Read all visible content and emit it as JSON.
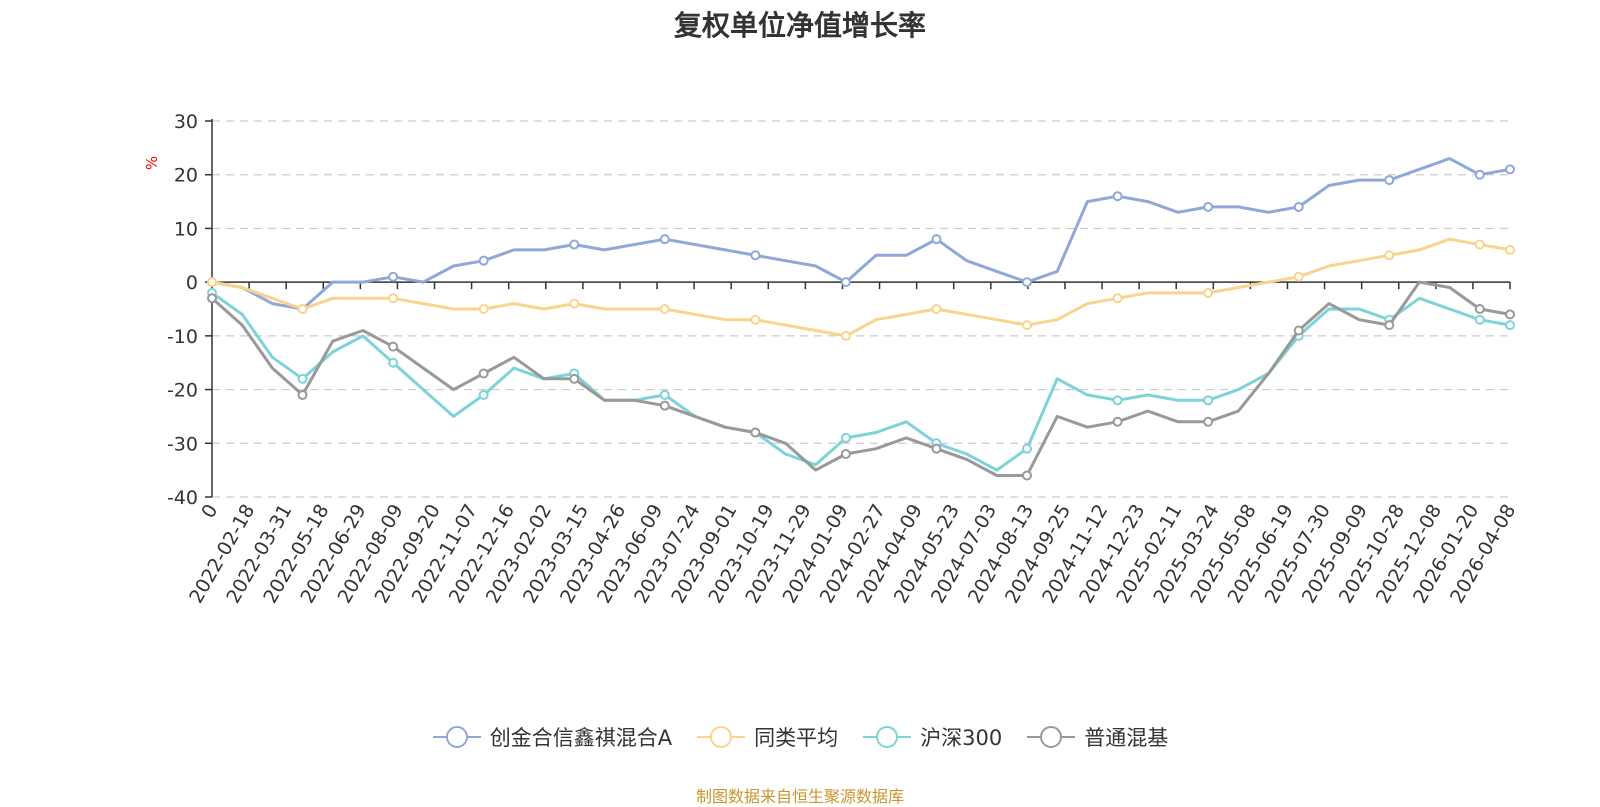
{
  "title": "复权单位净值增长率",
  "source": "制图数据来自恒生聚源数据库",
  "chart_data": {
    "type": "line",
    "title": "复权单位净值增长率",
    "ylabel": "%",
    "xlabel": "",
    "ylim": [
      -40,
      30
    ],
    "yticks": [
      30,
      20,
      10,
      0,
      -10,
      -20,
      -30,
      -40
    ],
    "grid": true,
    "legend_position": "bottom-center",
    "x_ticks": [
      "0",
      "2022-02-18",
      "2022-03-31",
      "2022-05-18",
      "2022-06-29",
      "2022-08-09",
      "2022-09-20",
      "2022-11-07",
      "2022-12-16",
      "2023-02-02",
      "2023-03-15",
      "2023-04-26",
      "2023-06-09",
      "2023-07-24",
      "2023-09-01",
      "2023-10-19",
      "2023-11-29",
      "2024-01-09",
      "2024-02-27",
      "2024-04-09",
      "2024-05-23",
      "2024-07-03",
      "2024-08-13",
      "2024-09-25",
      "2024-11-12",
      "2024-12-23",
      "2025-02-11",
      "2025-03-24",
      "2025-05-08",
      "2025-06-19",
      "2025-07-30",
      "2025-09-09",
      "2025-10-28",
      "2025-12-08",
      "2026-01-20",
      "2026-04-08"
    ],
    "series": [
      {
        "name": "创金合信鑫祺混合A",
        "color": "#8fa8d8",
        "values": [
          0,
          -1,
          -4,
          -5,
          0,
          0,
          1,
          0,
          3,
          4,
          6,
          6,
          7,
          6,
          7,
          8,
          7,
          6,
          5,
          4,
          3,
          0,
          5,
          5,
          8,
          4,
          2,
          0,
          2,
          15,
          16,
          15,
          13,
          14,
          14,
          13,
          14,
          18,
          19,
          19,
          21,
          23,
          20,
          21
        ]
      },
      {
        "name": "同类平均",
        "color": "#f8d48e",
        "values": [
          0,
          -1,
          -3,
          -5,
          -3,
          -3,
          -3,
          -4,
          -5,
          -5,
          -4,
          -5,
          -4,
          -5,
          -5,
          -5,
          -6,
          -7,
          -7,
          -8,
          -9,
          -10,
          -7,
          -6,
          -5,
          -6,
          -7,
          -8,
          -7,
          -4,
          -3,
          -2,
          -2,
          -2,
          -1,
          0,
          1,
          3,
          4,
          5,
          6,
          8,
          7,
          6
        ]
      },
      {
        "name": "沪深300",
        "color": "#7dd3d8",
        "values": [
          -2,
          -6,
          -14,
          -18,
          -13,
          -10,
          -15,
          -20,
          -25,
          -21,
          -16,
          -18,
          -17,
          -22,
          -22,
          -21,
          -25,
          -27,
          -28,
          -32,
          -34,
          -29,
          -28,
          -26,
          -30,
          -32,
          -35,
          -31,
          -18,
          -21,
          -22,
          -21,
          -22,
          -22,
          -20,
          -17,
          -10,
          -5,
          -5,
          -7,
          -3,
          -5,
          -7,
          -8
        ]
      },
      {
        "name": "普通混基",
        "color": "#999999",
        "values": [
          -3,
          -8,
          -16,
          -21,
          -11,
          -9,
          -12,
          -16,
          -20,
          -17,
          -14,
          -18,
          -18,
          -22,
          -22,
          -23,
          -25,
          -27,
          -28,
          -30,
          -35,
          -32,
          -31,
          -29,
          -31,
          -33,
          -36,
          -36,
          -25,
          -27,
          -26,
          -24,
          -26,
          -26,
          -24,
          -17,
          -9,
          -4,
          -7,
          -8,
          0,
          -1,
          -5,
          -6
        ]
      }
    ]
  }
}
